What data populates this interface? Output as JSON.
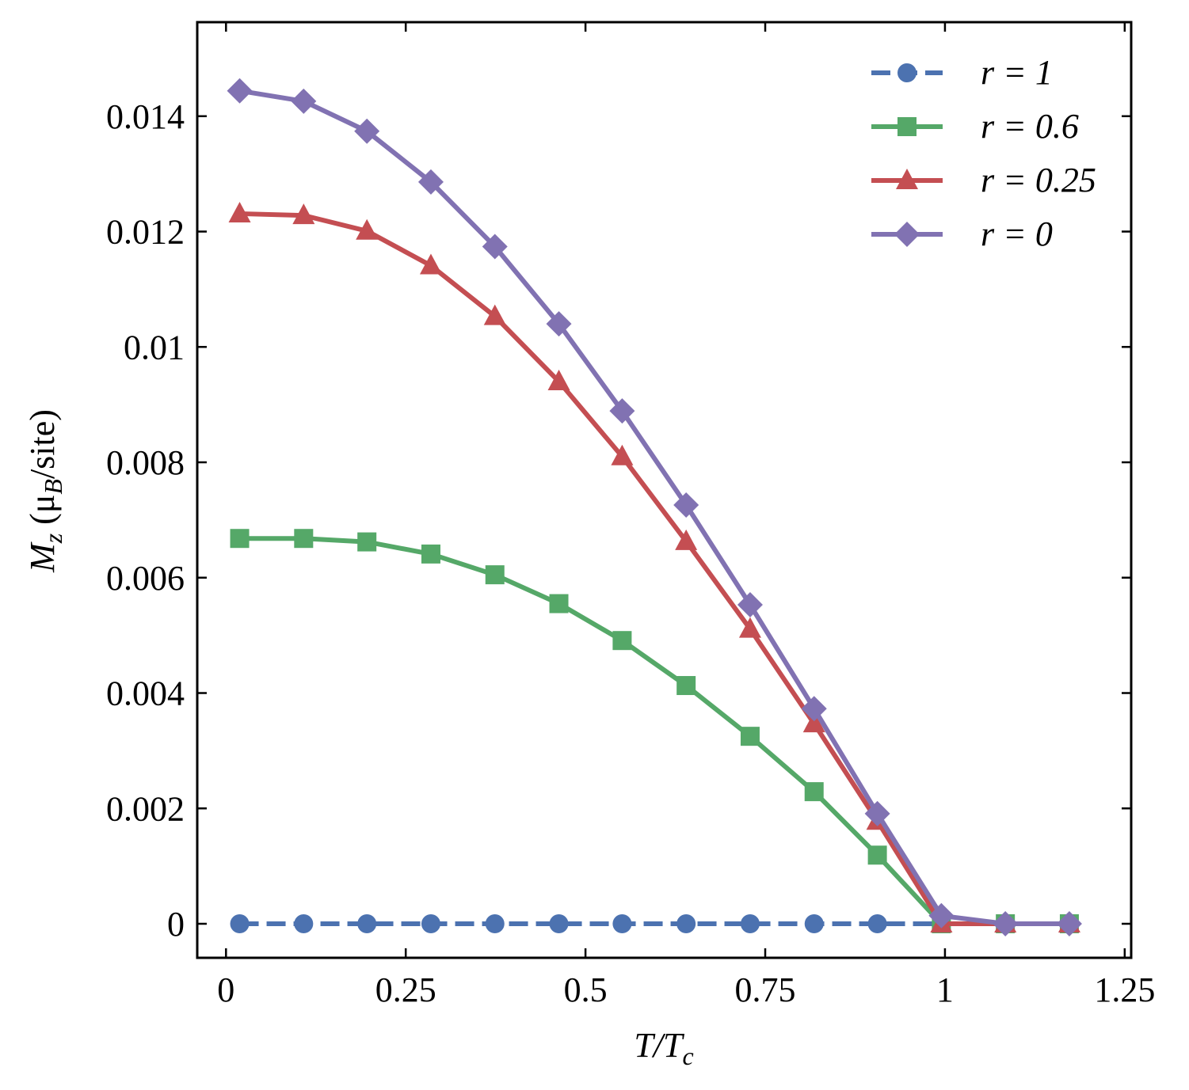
{
  "chart_data": {
    "type": "line",
    "x_label": [
      "T/T",
      "c"
    ],
    "y_label": [
      "M",
      "z",
      " (μ",
      "B",
      "/site)"
    ],
    "x": [
      0.019,
      0.108,
      0.196,
      0.285,
      0.374,
      0.463,
      0.551,
      0.64,
      0.729,
      0.818,
      0.906,
      0.995,
      1.084,
      1.173
    ],
    "series": [
      {
        "name": "r = 1",
        "color": "#4c72b0",
        "marker": "circle",
        "dashed": true,
        "values": [
          0,
          0,
          0,
          0,
          0,
          0,
          0,
          0,
          0,
          0,
          0,
          0,
          0,
          0
        ]
      },
      {
        "name": "r = 0.6",
        "color": "#55a868",
        "marker": "square",
        "dashed": false,
        "values": [
          0.00668,
          0.00668,
          0.00662,
          0.00641,
          0.00605,
          0.00555,
          0.00491,
          0.00413,
          0.00325,
          0.00229,
          0.00119,
          0,
          0,
          0
        ]
      },
      {
        "name": "r = 0.25",
        "color": "#c44e52",
        "marker": "triangle",
        "dashed": false,
        "values": [
          0.01231,
          0.01228,
          0.01201,
          0.01141,
          0.01053,
          0.0094,
          0.0081,
          0.00663,
          0.00511,
          0.00347,
          0.00178,
          0,
          0,
          0
        ]
      },
      {
        "name": "r = 0",
        "color": "#8172b2",
        "marker": "diamond",
        "dashed": false,
        "values": [
          0.01444,
          0.01426,
          0.01374,
          0.01286,
          0.01174,
          0.0104,
          0.00889,
          0.00726,
          0.00553,
          0.00373,
          0.00191,
          0.00014,
          0,
          0
        ]
      }
    ],
    "xlim": [
      -0.04,
      1.259
    ],
    "ylim": [
      -0.00059,
      0.01563
    ],
    "xticks": [
      0,
      0.25,
      0.5,
      0.75,
      1,
      1.25
    ],
    "yticks": [
      0,
      0.002,
      0.004,
      0.006,
      0.008,
      0.01,
      0.012,
      0.014
    ],
    "legend": "upper right",
    "grid": false
  }
}
